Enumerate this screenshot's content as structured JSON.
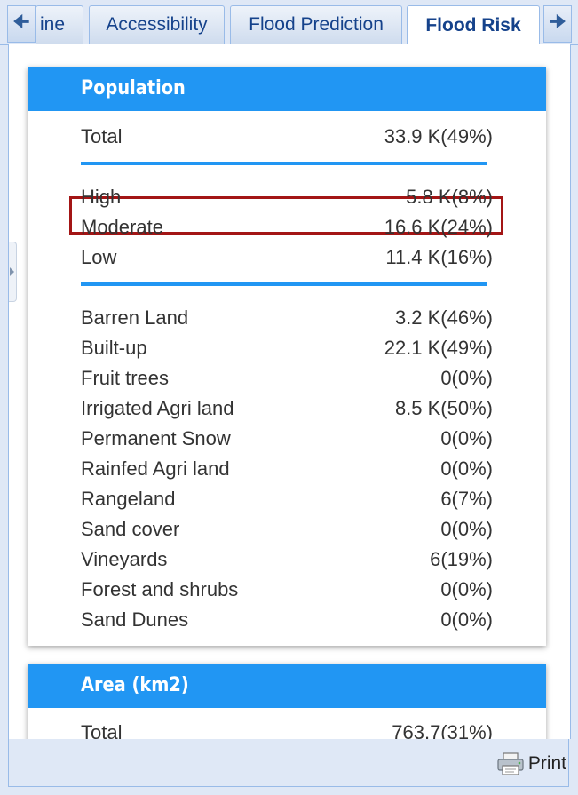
{
  "tabs": [
    {
      "label": "ine"
    },
    {
      "label": "Accessibility"
    },
    {
      "label": "Flood Prediction"
    },
    {
      "label": "Flood Risk",
      "active": true
    }
  ],
  "scroll_icons": {
    "left": "arrow-left-icon",
    "right": "arrow-right-icon"
  },
  "population": {
    "title": "Population",
    "total": {
      "label": "Total",
      "value": "33.9 K(49%)"
    },
    "risk": [
      {
        "label": "High",
        "value": "5.8 K(8%)"
      },
      {
        "label": "Moderate",
        "value": "16.6 K(24%)"
      },
      {
        "label": "Low",
        "value": "11.4 K(16%)"
      }
    ],
    "landcover": [
      {
        "label": "Barren Land",
        "value": "3.2 K(46%)"
      },
      {
        "label": "Built-up",
        "value": "22.1 K(49%)"
      },
      {
        "label": "Fruit trees",
        "value": "0(0%)"
      },
      {
        "label": "Irrigated Agri land",
        "value": "8.5 K(50%)"
      },
      {
        "label": "Permanent Snow",
        "value": "0(0%)"
      },
      {
        "label": "Rainfed Agri land",
        "value": "0(0%)"
      },
      {
        "label": "Rangeland",
        "value": "6(7%)"
      },
      {
        "label": "Sand cover",
        "value": "0(0%)"
      },
      {
        "label": "Vineyards",
        "value": "6(19%)"
      },
      {
        "label": "Forest and shrubs",
        "value": "0(0%)"
      },
      {
        "label": "Sand Dunes",
        "value": "0(0%)"
      }
    ]
  },
  "area": {
    "title": "Area (km2)",
    "total": {
      "label": "Total",
      "value": "763.7(31%)"
    }
  },
  "footer": {
    "print_label": "Print"
  },
  "colors": {
    "header": "#2196f3",
    "highlight": "#a31515",
    "tab_text": "#15428b"
  }
}
